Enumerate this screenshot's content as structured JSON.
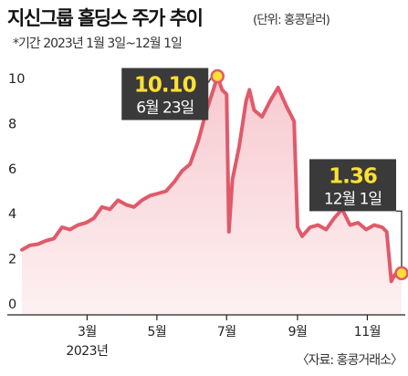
{
  "header": {
    "title": "지신그룹 홀딩스 주가 추이",
    "unit": "(단위: 홍콩달러)",
    "period": "*기간 2023년 1월 3일~12월 1일"
  },
  "footer": {
    "source": "〈자료: 홍콩거래소〉"
  },
  "colors": {
    "line": "#e05a6a",
    "fill_top": "#f7c9cf",
    "fill_bottom": "#fdf1f2",
    "callout_bg": "#3a3a3a",
    "callout_value": "#ffe033",
    "marker": "#ffe033"
  },
  "chart_data": {
    "type": "area",
    "title": "지신그룹 홀딩스 주가 추이",
    "unit": "(단위: 홍콩달러)",
    "ylim": [
      0,
      10
    ],
    "yticks": [
      0,
      2,
      4,
      6,
      8,
      10
    ],
    "xlim": [
      "2023-01-03",
      "2023-12-01"
    ],
    "xticks": [
      {
        "date": "2023-03-01",
        "label": "3월"
      },
      {
        "date": "2023-05-01",
        "label": "5월"
      },
      {
        "date": "2023-07-01",
        "label": "7월"
      },
      {
        "date": "2023-09-01",
        "label": "9월"
      },
      {
        "date": "2023-11-01",
        "label": "11월"
      }
    ],
    "year_label": "2023년",
    "grid": false,
    "series": [
      {
        "points": [
          [
            "2023-01-03",
            2.4
          ],
          [
            "2023-01-10",
            2.6
          ],
          [
            "2023-01-17",
            2.65
          ],
          [
            "2023-01-24",
            2.8
          ],
          [
            "2023-01-31",
            2.9
          ],
          [
            "2023-02-07",
            3.4
          ],
          [
            "2023-02-14",
            3.3
          ],
          [
            "2023-02-21",
            3.5
          ],
          [
            "2023-02-28",
            3.6
          ],
          [
            "2023-03-07",
            3.8
          ],
          [
            "2023-03-14",
            4.3
          ],
          [
            "2023-03-21",
            4.2
          ],
          [
            "2023-03-28",
            4.6
          ],
          [
            "2023-04-04",
            4.4
          ],
          [
            "2023-04-11",
            4.3
          ],
          [
            "2023-04-18",
            4.6
          ],
          [
            "2023-04-25",
            4.8
          ],
          [
            "2023-05-02",
            4.9
          ],
          [
            "2023-05-09",
            5.0
          ],
          [
            "2023-05-16",
            5.4
          ],
          [
            "2023-05-23",
            5.9
          ],
          [
            "2023-05-30",
            6.2
          ],
          [
            "2023-06-06",
            7.2
          ],
          [
            "2023-06-13",
            8.5
          ],
          [
            "2023-06-20",
            9.6
          ],
          [
            "2023-06-23",
            10.1
          ],
          [
            "2023-06-27",
            9.5
          ],
          [
            "2023-07-01",
            9.3
          ],
          [
            "2023-07-03",
            3.2
          ],
          [
            "2023-07-06",
            5.5
          ],
          [
            "2023-07-12",
            7.0
          ],
          [
            "2023-07-18",
            9.0
          ],
          [
            "2023-07-21",
            9.5
          ],
          [
            "2023-07-25",
            8.6
          ],
          [
            "2023-08-01",
            8.3
          ],
          [
            "2023-08-08",
            9.0
          ],
          [
            "2023-08-15",
            9.6
          ],
          [
            "2023-08-22",
            8.8
          ],
          [
            "2023-08-29",
            8.1
          ],
          [
            "2023-09-01",
            3.4
          ],
          [
            "2023-09-05",
            3.0
          ],
          [
            "2023-09-12",
            3.4
          ],
          [
            "2023-09-19",
            3.5
          ],
          [
            "2023-09-26",
            3.3
          ],
          [
            "2023-10-03",
            3.8
          ],
          [
            "2023-10-10",
            4.2
          ],
          [
            "2023-10-17",
            3.5
          ],
          [
            "2023-10-24",
            3.6
          ],
          [
            "2023-10-31",
            3.3
          ],
          [
            "2023-11-07",
            3.5
          ],
          [
            "2023-11-14",
            3.4
          ],
          [
            "2023-11-18",
            3.2
          ],
          [
            "2023-11-22",
            1.0
          ],
          [
            "2023-11-25",
            1.3
          ],
          [
            "2023-11-28",
            1.2
          ],
          [
            "2023-12-01",
            1.36
          ]
        ]
      }
    ],
    "annotations": [
      {
        "date": "2023-06-23",
        "value": 10.1,
        "value_label": "10.10",
        "date_label": "6월 23일"
      },
      {
        "date": "2023-12-01",
        "value": 1.36,
        "value_label": "1.36",
        "date_label": "12월 1일"
      }
    ]
  }
}
